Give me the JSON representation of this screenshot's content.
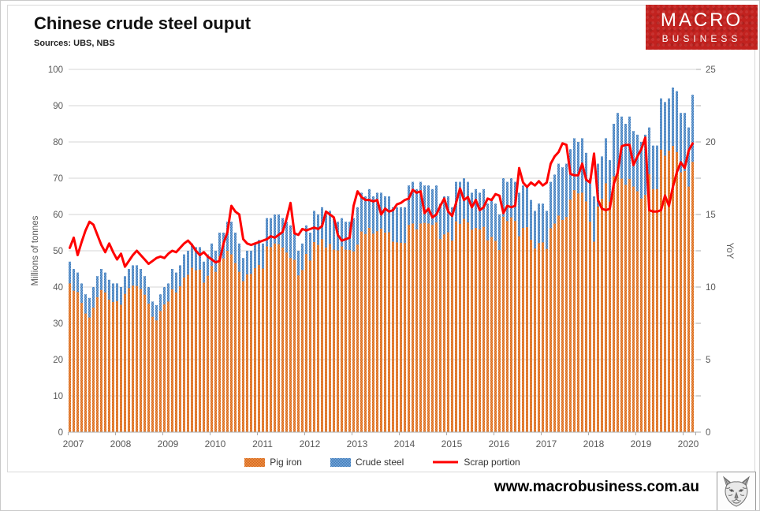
{
  "header": {
    "title": "Chinese crude steel ouput",
    "subtitle": "Sources: UBS, NBS",
    "logo": {
      "line1": "MACRO",
      "line2": "BUSINESS",
      "bg_color": "#c2221f"
    }
  },
  "footer": {
    "website": "www.macrobusiness.com.au",
    "logo_icon": "wolf-sketch-icon"
  },
  "chart_data": {
    "type": "bar",
    "subtype": "monthly bars with overlay line",
    "x_start": "2007-01",
    "x_frequency": "monthly",
    "x_tick_labels": [
      "2007",
      "2008",
      "2009",
      "2010",
      "2011",
      "2012",
      "2013",
      "2014",
      "2015",
      "2016",
      "2017",
      "2018",
      "2019",
      "2020"
    ],
    "left_axis": {
      "label": "Millions of tonnes",
      "min": 0,
      "max": 100,
      "step": 10
    },
    "right_axis": {
      "label": "YoY",
      "min": 0,
      "max": 25,
      "step": 5,
      "minor_step": 2.5
    },
    "grid": "horizontal",
    "legend_position": "bottom",
    "colors": {
      "grid": "#d6d6d6",
      "axis": "#ababab",
      "tick_text": "#595959"
    },
    "series": [
      {
        "name": "Pig iron",
        "type": "bar",
        "axis": "left",
        "color": "#ED7D31",
        "color_dark": "#D26517",
        "values": [
          41.0,
          39.0,
          38.6,
          35.6,
          32.7,
          31.6,
          34.3,
          37.2,
          39.2,
          38.5,
          36.5,
          35.9,
          36.1,
          35.1,
          38.1,
          39.7,
          40.4,
          40.3,
          39.5,
          37.9,
          35.4,
          31.8,
          30.8,
          33.4,
          35.2,
          36.0,
          39.4,
          38.5,
          40.2,
          42.6,
          43.4,
          45.3,
          44.6,
          44.8,
          41.2,
          43.1,
          45.8,
          44.2,
          48.5,
          47.9,
          50.0,
          49.0,
          46.6,
          44.2,
          41.6,
          43.5,
          43.6,
          45.2,
          46.1,
          45.1,
          51.2,
          51.0,
          52.0,
          51.8,
          50.9,
          49.5,
          48.0,
          47.5,
          43.2,
          44.7,
          49.1,
          47.3,
          52.4,
          51.6,
          53.2,
          50.9,
          51.9,
          50.3,
          50.1,
          51.2,
          50.3,
          50.2,
          49.8,
          51.7,
          55.3,
          54.6,
          56.3,
          54.7,
          55.4,
          56.1,
          55.0,
          55.1,
          52.5,
          52.3,
          52.2,
          52.1,
          57.1,
          57.5,
          55.9,
          57.5,
          57.7,
          57.5,
          57.1,
          57.8,
          53.2,
          54.5,
          55.1,
          52.8,
          58.1,
          57.4,
          58.8,
          57.8,
          55.8,
          56.3,
          55.9,
          56.6,
          52.9,
          53.8,
          52.7,
          50.2,
          59.4,
          58.2,
          59.2,
          58.2,
          54.0,
          56.3,
          56.5,
          53.0,
          50.6,
          52.1,
          52.3,
          50.5,
          56.2,
          57.5,
          59.7,
          58.5,
          59.3,
          64.1,
          66.7,
          65.8,
          66.0,
          63.6,
          58.0,
          52.5,
          62.2,
          64.3,
          68.6,
          63.5,
          70.5,
          72.2,
          69.9,
          68.2,
          69.8,
          67.7,
          66.4,
          64.4,
          65.4,
          71.1,
          67.0,
          67.0,
          77.9,
          76.2,
          77.6,
          78.9,
          77.2,
          71.6,
          72.0,
          67.7,
          74.5
        ]
      },
      {
        "name": "Crude steel",
        "type": "bar",
        "axis": "left",
        "color": "#5B9BD5",
        "color_dark": "#3E78B5",
        "values": [
          47,
          45,
          44,
          41,
          38,
          37,
          40,
          43,
          45,
          44,
          42,
          41,
          41,
          40,
          43,
          45,
          46,
          46,
          45,
          43,
          40,
          36,
          35,
          38,
          40,
          41,
          45,
          44,
          46,
          49,
          50,
          52,
          51,
          51,
          47,
          49,
          52,
          50,
          55,
          55,
          58,
          58,
          55,
          52,
          48,
          50,
          50,
          52,
          53,
          52,
          59,
          59,
          60,
          60,
          59,
          58,
          57,
          55,
          50,
          52,
          57,
          55,
          61,
          60,
          62,
          60,
          61,
          59,
          58,
          59,
          58,
          58,
          59,
          62,
          66,
          65,
          67,
          65,
          66,
          66,
          65,
          65,
          62,
          62,
          62,
          62,
          68,
          69,
          67,
          69,
          68,
          68,
          67,
          68,
          63,
          65,
          65,
          62,
          69,
          69,
          70,
          69,
          66,
          67,
          66,
          67,
          63,
          64,
          63,
          60,
          70,
          69,
          70,
          69,
          66,
          68,
          68,
          64,
          61,
          63,
          63,
          61,
          69,
          71,
          74,
          73,
          74,
          78,
          81,
          80,
          81,
          77,
          70,
          65,
          74,
          76,
          81,
          75,
          85,
          88,
          87,
          85,
          87,
          83,
          82,
          80,
          82,
          84,
          79,
          79,
          92,
          91,
          92,
          95,
          94,
          88,
          88,
          84,
          93
        ]
      },
      {
        "name": "Scrap portion",
        "type": "line",
        "axis": "right",
        "color": "#FF0000",
        "values": [
          12.7,
          13.4,
          12.2,
          13.1,
          13.9,
          14.5,
          14.3,
          13.6,
          12.9,
          12.4,
          13.0,
          12.4,
          11.9,
          12.3,
          11.4,
          11.8,
          12.2,
          12.5,
          12.2,
          11.9,
          11.6,
          11.8,
          12.0,
          12.1,
          12.0,
          12.3,
          12.5,
          12.4,
          12.7,
          13.0,
          13.2,
          12.9,
          12.5,
          12.2,
          12.4,
          12.1,
          11.9,
          11.7,
          11.8,
          13.0,
          13.8,
          15.6,
          15.2,
          15.0,
          13.3,
          13.0,
          12.9,
          13.0,
          13.1,
          13.2,
          13.3,
          13.5,
          13.4,
          13.6,
          13.8,
          14.7,
          15.8,
          13.7,
          13.6,
          14.0,
          13.9,
          14.0,
          14.1,
          14.0,
          14.2,
          15.2,
          15.0,
          14.8,
          13.6,
          13.2,
          13.3,
          13.4,
          15.6,
          16.6,
          16.2,
          16.0,
          16.0,
          15.9,
          16.0,
          15.0,
          15.4,
          15.2,
          15.3,
          15.7,
          15.8,
          16.0,
          16.1,
          16.7,
          16.5,
          16.6,
          15.1,
          15.4,
          14.8,
          15.0,
          15.6,
          16.1,
          15.2,
          14.9,
          15.8,
          16.8,
          16.0,
          16.2,
          15.5,
          16.0,
          15.3,
          15.5,
          16.1,
          16.0,
          16.4,
          16.3,
          15.1,
          15.6,
          15.5,
          15.6,
          18.2,
          17.2,
          16.9,
          17.2,
          17.0,
          17.3,
          17.0,
          17.2,
          18.5,
          19.0,
          19.3,
          19.9,
          19.8,
          17.8,
          17.7,
          17.7,
          18.5,
          17.4,
          17.2,
          19.2,
          16.0,
          15.4,
          15.3,
          15.4,
          17.1,
          17.9,
          19.7,
          19.8,
          19.8,
          18.4,
          19.0,
          19.5,
          20.3,
          15.3,
          15.2,
          15.2,
          15.3,
          16.3,
          15.6,
          16.9,
          17.9,
          18.6,
          18.2,
          19.4,
          19.9
        ]
      }
    ]
  }
}
